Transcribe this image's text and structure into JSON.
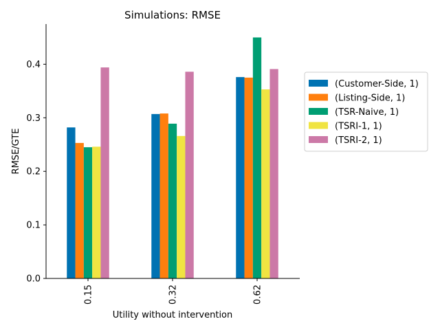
{
  "chart_data": {
    "type": "bar",
    "title": "Simulations: RMSE",
    "xlabel": "Utility without intervention",
    "ylabel": "RMSE/GTE",
    "categories": [
      "0.15",
      "0.32",
      "0.62"
    ],
    "ylim": [
      0,
      0.475
    ],
    "yticks": [
      "0.0",
      "0.1",
      "0.2",
      "0.3",
      "0.4"
    ],
    "grid": false,
    "legend_position": "right",
    "series": [
      {
        "name": "(Customer-Side, 1)",
        "color": "#0072b2",
        "values": [
          0.282,
          0.307,
          0.376
        ]
      },
      {
        "name": "(Listing-Side, 1)",
        "color": "#ff7f0e",
        "values": [
          0.253,
          0.308,
          0.375
        ]
      },
      {
        "name": "(TSR-Naive, 1)",
        "color": "#009e73",
        "values": [
          0.245,
          0.289,
          0.45
        ]
      },
      {
        "name": "(TSRI-1, 1)",
        "color": "#f0e442",
        "values": [
          0.246,
          0.266,
          0.353
        ]
      },
      {
        "name": "(TSRI-2, 1)",
        "color": "#cc79a7",
        "values": [
          0.394,
          0.386,
          0.391
        ]
      }
    ]
  }
}
